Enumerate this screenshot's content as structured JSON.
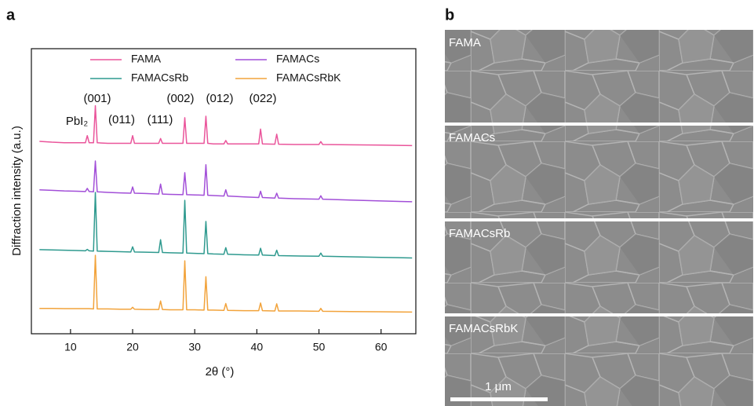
{
  "panel_labels": [
    "a",
    "b"
  ],
  "chart_data": {
    "type": "line",
    "xlabel": "2θ (°)",
    "ylabel": "Diffraction intensity (a.u.)",
    "annotations": [
      "PbI₂",
      "(001)",
      "(011)",
      "(111)",
      "(002)",
      "(012)",
      "(022)"
    ],
    "x": [
      5,
      7,
      9,
      11,
      12.4,
      12.7,
      13.0,
      13.7,
      14.0,
      14.3,
      16,
      18,
      19.7,
      20.0,
      20.3,
      22,
      24.2,
      24.5,
      24.8,
      26,
      28.1,
      28.4,
      28.7,
      30,
      31.5,
      31.8,
      32.1,
      33,
      34.7,
      35.0,
      35.3,
      38,
      40.3,
      40.6,
      40.9,
      42.9,
      43.2,
      43.5,
      46,
      50.0,
      50.3,
      50.6,
      55,
      60,
      65
    ],
    "series": [
      {
        "name": "FAMA",
        "color": "#ea559b",
        "values": [
          67.5,
          67.2,
          67.0,
          67.0,
          67.0,
          69.5,
          67.0,
          67.0,
          80.0,
          67.0,
          66.8,
          66.8,
          66.8,
          69.5,
          66.8,
          66.8,
          66.8,
          68.5,
          66.8,
          66.8,
          66.8,
          75.8,
          66.8,
          66.8,
          66.8,
          76.3,
          66.8,
          66.6,
          66.6,
          67.8,
          66.6,
          66.6,
          66.6,
          71.8,
          66.6,
          66.5,
          70.0,
          66.5,
          66.4,
          66.4,
          67.4,
          66.4,
          66.3,
          66.2,
          66.0
        ]
      },
      {
        "name": "FAMACs",
        "color": "#a24fd8",
        "values": [
          50.5,
          50.3,
          50.1,
          50.0,
          49.9,
          51.0,
          49.9,
          49.8,
          60.6,
          49.8,
          49.6,
          49.4,
          49.3,
          51.5,
          49.3,
          49.2,
          49.0,
          52.5,
          49.0,
          48.9,
          48.8,
          56.5,
          48.8,
          48.7,
          48.6,
          59.3,
          48.6,
          48.5,
          48.3,
          50.5,
          48.3,
          48.0,
          47.8,
          50.0,
          47.8,
          47.6,
          49.3,
          47.6,
          47.4,
          47.2,
          48.4,
          47.2,
          46.9,
          46.6,
          46.3
        ]
      },
      {
        "name": "FAMACsRb",
        "color": "#2f9a8f",
        "values": [
          29.5,
          29.4,
          29.3,
          29.2,
          29.1,
          29.6,
          29.1,
          29.0,
          49.6,
          29.0,
          28.9,
          28.8,
          28.7,
          30.5,
          28.7,
          28.6,
          28.5,
          33.0,
          28.5,
          28.4,
          28.3,
          46.8,
          28.3,
          28.2,
          28.1,
          39.4,
          28.1,
          28.0,
          27.9,
          30.2,
          27.9,
          27.7,
          27.6,
          30.0,
          27.6,
          27.4,
          29.3,
          27.4,
          27.3,
          27.2,
          28.3,
          27.2,
          27.0,
          26.8,
          26.6
        ]
      },
      {
        "name": "FAMACsRbK",
        "color": "#f2a33b",
        "values": [
          8.9,
          8.9,
          8.8,
          8.8,
          8.8,
          8.8,
          8.8,
          8.7,
          27.5,
          8.7,
          8.7,
          8.6,
          8.6,
          9.3,
          8.6,
          8.5,
          8.5,
          11.5,
          8.5,
          8.4,
          8.4,
          25.6,
          8.4,
          8.4,
          8.3,
          20.0,
          8.3,
          8.3,
          8.2,
          10.6,
          8.2,
          8.1,
          8.1,
          10.8,
          8.1,
          8.0,
          10.5,
          8.0,
          8.0,
          7.9,
          8.9,
          7.9,
          7.8,
          7.7,
          7.6
        ]
      }
    ],
    "xlim": [
      3.7,
      65.6
    ],
    "ylim": [
      0,
      100
    ],
    "xticks": [
      10,
      20,
      30,
      40,
      50,
      60
    ]
  },
  "micrographs": {
    "labels": [
      "FAMA",
      "FAMACs",
      "FAMACsRb",
      "FAMACsRbK"
    ],
    "scale_bar": "1 μm"
  }
}
